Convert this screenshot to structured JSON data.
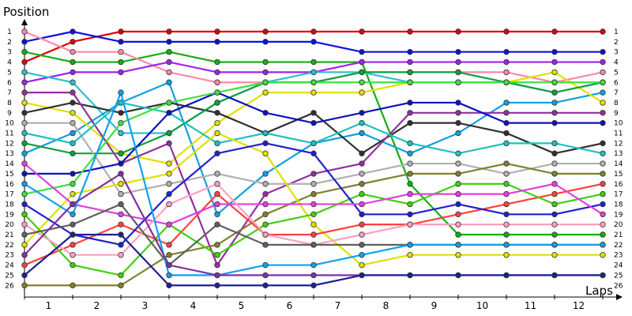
{
  "chart_data": {
    "type": "line",
    "title": "",
    "xlabel": "Laps",
    "ylabel": "Position",
    "x_ticks": [
      "1",
      "2",
      "3",
      "4",
      "5",
      "6",
      "7",
      "8",
      "9",
      "10",
      "11",
      "12"
    ],
    "y_ticks": [
      "1",
      "2",
      "3",
      "4",
      "5",
      "6",
      "7",
      "8",
      "9",
      "10",
      "11",
      "12",
      "13",
      "14",
      "15",
      "16",
      "17",
      "18",
      "19",
      "20",
      "21",
      "22",
      "23",
      "24",
      "25",
      "26"
    ],
    "ylim": [
      1,
      26
    ],
    "y_inverted": true,
    "x_steps": [
      0,
      1,
      2,
      3,
      4,
      5,
      6,
      7,
      8,
      9,
      10,
      11,
      12
    ],
    "grid": false,
    "legend": "none",
    "series": [
      {
        "color": "#e00000",
        "values": [
          4,
          2,
          1,
          1,
          1,
          1,
          1,
          1,
          1,
          1,
          1,
          1,
          1
        ]
      },
      {
        "color": "#1010e0",
        "values": [
          2,
          1,
          2,
          2,
          2,
          2,
          2,
          3,
          3,
          3,
          3,
          3,
          3
        ]
      },
      {
        "color": "#10b010",
        "values": [
          3,
          4,
          4,
          3,
          4,
          4,
          4,
          4,
          16,
          21,
          21,
          21,
          21
        ]
      },
      {
        "color": "#ff88aa",
        "values": [
          1,
          3,
          3,
          5,
          6,
          6,
          6,
          5,
          5,
          5,
          5,
          6,
          5
        ]
      },
      {
        "color": "#a020f0",
        "values": [
          6,
          5,
          5,
          4,
          5,
          5,
          5,
          4,
          4,
          4,
          4,
          4,
          4
        ]
      },
      {
        "color": "#30c0d0",
        "values": [
          5,
          6,
          11,
          11,
          8,
          6,
          5,
          5,
          6,
          6,
          6,
          7,
          6
        ]
      },
      {
        "color": "#10a0e0",
        "values": [
          13,
          11,
          8,
          6,
          19,
          15,
          12,
          11,
          13,
          11,
          8,
          8,
          7
        ]
      },
      {
        "color": "#e0e000",
        "values": [
          8,
          9,
          13,
          14,
          10,
          7,
          7,
          7,
          6,
          6,
          6,
          5,
          8
        ]
      },
      {
        "color": "#303030",
        "values": [
          9,
          8,
          9,
          8,
          9,
          11,
          9,
          13,
          10,
          10,
          11,
          13,
          12
        ]
      },
      {
        "color": "#9030a0",
        "values": [
          7,
          7,
          14,
          12,
          24,
          17,
          15,
          14,
          9,
          9,
          9,
          9,
          9
        ]
      },
      {
        "color": "#10a040",
        "values": [
          12,
          13,
          13,
          11,
          8,
          6,
          6,
          5,
          5,
          5,
          6,
          7,
          6
        ]
      },
      {
        "color": "#b0b0b0",
        "values": [
          10,
          10,
          17,
          16,
          15,
          16,
          16,
          15,
          14,
          14,
          15,
          14,
          14
        ]
      },
      {
        "color": "#808030",
        "values": [
          26,
          26,
          26,
          23,
          22,
          19,
          17,
          16,
          15,
          15,
          14,
          15,
          15
        ]
      },
      {
        "color": "#20c0c0",
        "values": [
          11,
          12,
          8,
          9,
          12,
          11,
          12,
          10,
          12,
          13,
          12,
          12,
          13
        ]
      },
      {
        "color": "#1010c0",
        "values": [
          15,
          15,
          14,
          9,
          7,
          9,
          10,
          9,
          8,
          8,
          10,
          10,
          10
        ]
      },
      {
        "color": "#40e040",
        "values": [
          17,
          16,
          10,
          8,
          7,
          6,
          6,
          6,
          6,
          6,
          6,
          6,
          6
        ]
      },
      {
        "color": "#e0e000",
        "values": [
          22,
          17,
          16,
          15,
          11,
          13,
          20,
          24,
          23,
          23,
          23,
          23,
          23
        ]
      },
      {
        "color": "#ff4040",
        "values": [
          24,
          22,
          20,
          22,
          17,
          21,
          21,
          20,
          20,
          19,
          18,
          17,
          16
        ]
      },
      {
        "color": "#40d010",
        "values": [
          19,
          24,
          25,
          20,
          23,
          20,
          19,
          17,
          18,
          16,
          16,
          18,
          17
        ]
      },
      {
        "color": "#2020d0",
        "values": [
          18,
          21,
          22,
          17,
          13,
          12,
          13,
          19,
          19,
          18,
          19,
          19,
          18
        ]
      },
      {
        "color": "#e040e0",
        "values": [
          14,
          18,
          19,
          20,
          18,
          18,
          18,
          18,
          17,
          17,
          17,
          16,
          19
        ]
      },
      {
        "color": "#ffa0c0",
        "values": [
          20,
          23,
          23,
          18,
          16,
          21,
          22,
          21,
          20,
          20,
          20,
          20,
          20
        ]
      },
      {
        "color": "#606060",
        "values": [
          21,
          20,
          18,
          24,
          20,
          22,
          22,
          22,
          22,
          22,
          22,
          22,
          22
        ]
      },
      {
        "color": "#10a0f0",
        "values": [
          16,
          19,
          7,
          25,
          25,
          24,
          24,
          23,
          22,
          22,
          22,
          22,
          22
        ]
      },
      {
        "color": "#8030a0",
        "values": [
          23,
          18,
          15,
          24,
          25,
          25,
          25,
          25,
          25,
          25,
          25,
          25,
          25
        ]
      },
      {
        "color": "#202090",
        "values": [
          25,
          21,
          21,
          26,
          26,
          26,
          26,
          25,
          25,
          25,
          25,
          25,
          25
        ]
      }
    ]
  }
}
